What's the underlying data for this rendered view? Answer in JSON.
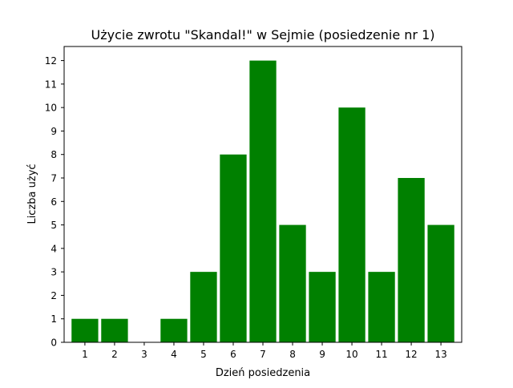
{
  "chart_data": {
    "type": "bar",
    "title": "Użycie zwrotu \"Skandal!\" w Sejmie (posiedzenie nr 1)",
    "xlabel": "Dzień posiedzenia",
    "ylabel": "Liczba użyć",
    "categories": [
      "1",
      "2",
      "3",
      "4",
      "5",
      "6",
      "7",
      "8",
      "9",
      "10",
      "11",
      "12",
      "13"
    ],
    "values": [
      1,
      1,
      0,
      1,
      3,
      8,
      12,
      5,
      3,
      10,
      3,
      7,
      5
    ],
    "ylim": [
      0,
      12.6
    ],
    "yticks": [
      0,
      1,
      2,
      3,
      4,
      5,
      6,
      7,
      8,
      9,
      10,
      11,
      12
    ],
    "bar_color": "#008000",
    "grid": false,
    "legend": "none"
  }
}
